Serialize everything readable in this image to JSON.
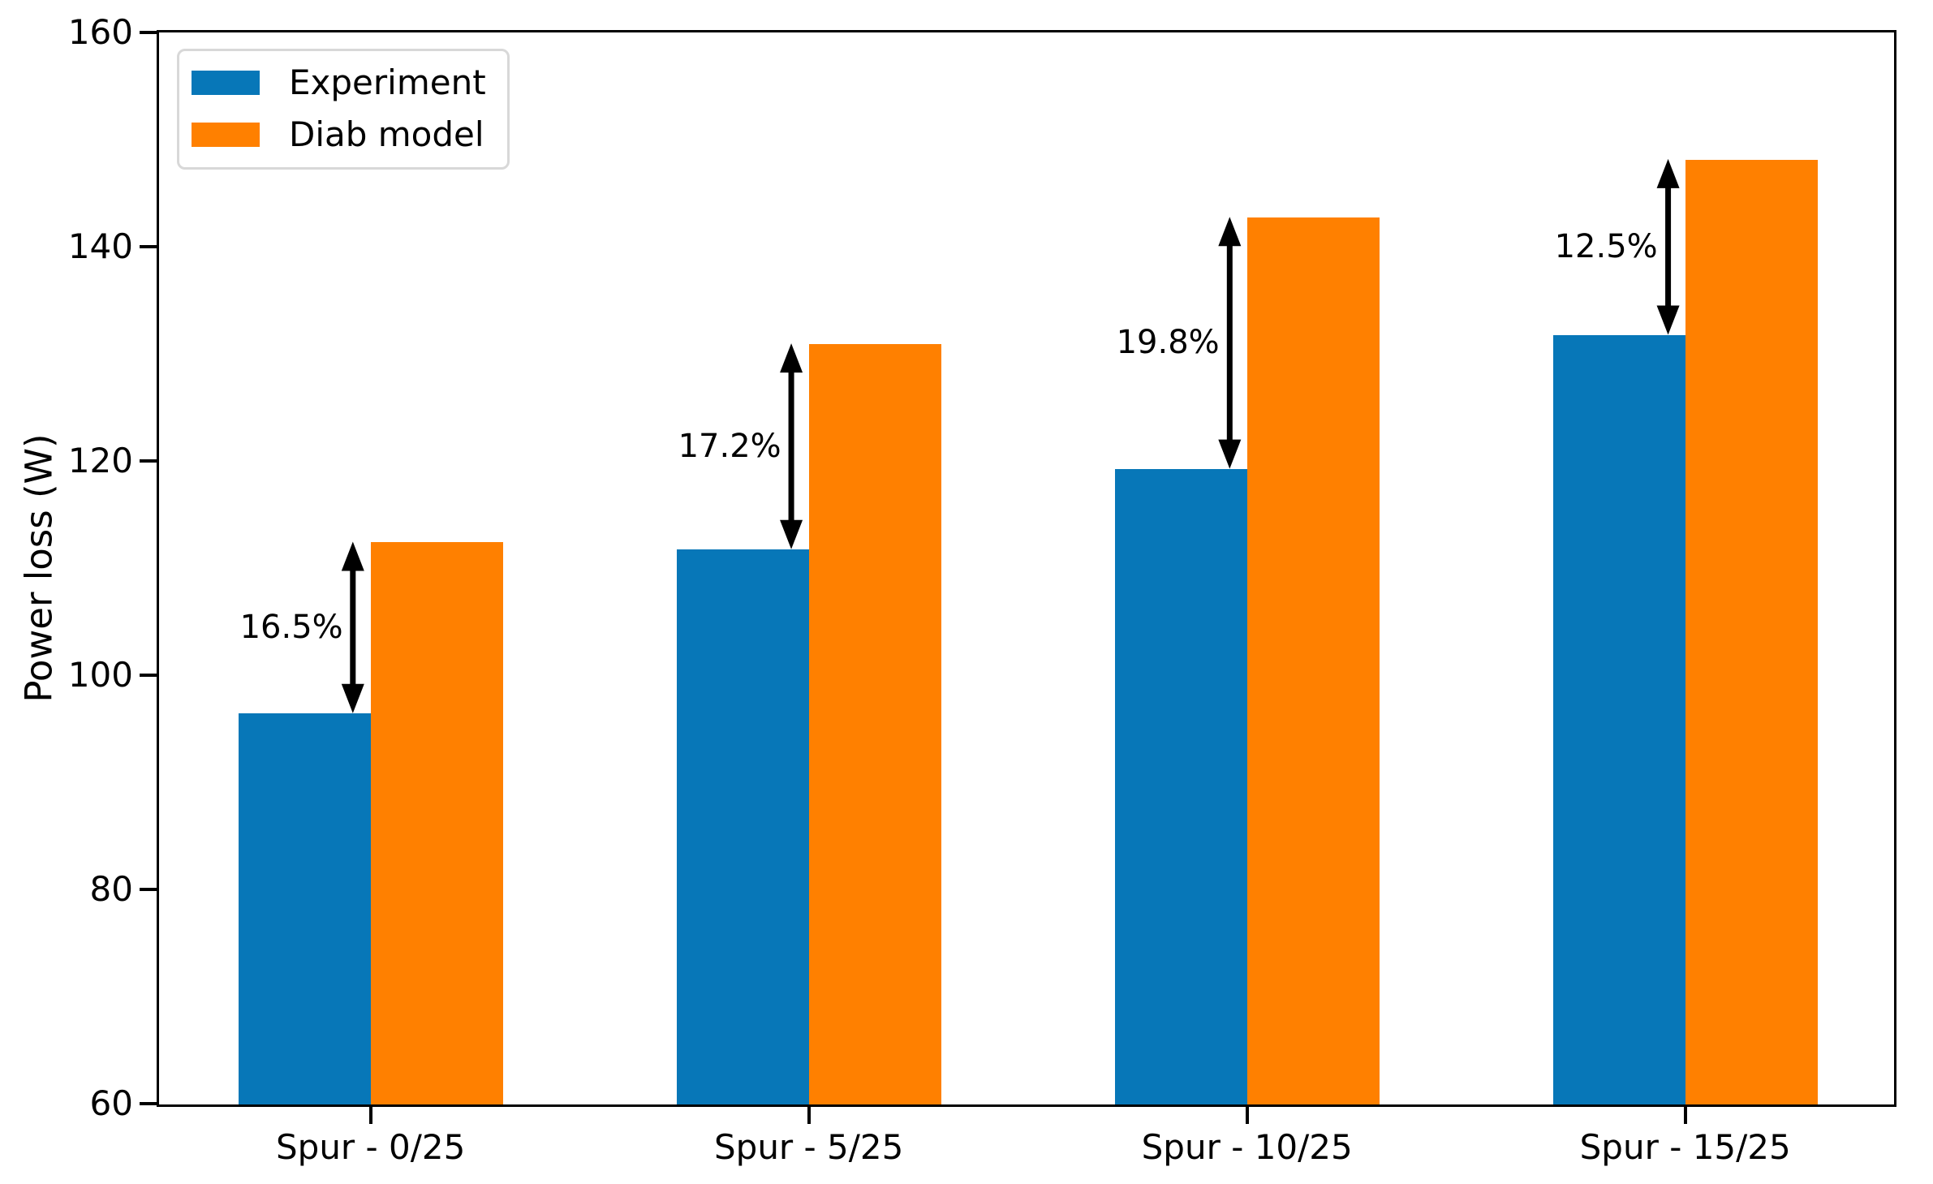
{
  "figure": {
    "ylabel": "Power loss (W)"
  },
  "chart_data": {
    "type": "bar",
    "title": "",
    "xlabel": "",
    "ylabel": "Power loss (W)",
    "categories": [
      "Spur - 0/25",
      "Spur - 5/25",
      "Spur - 10/25",
      "Spur - 15/25"
    ],
    "series": [
      {
        "name": "Experiment",
        "color": "#0777b8",
        "values": [
          96.5,
          111.8,
          119.3,
          131.8
        ]
      },
      {
        "name": "Diab model",
        "color": "#ff8000",
        "values": [
          112.5,
          131.0,
          142.8,
          148.2
        ]
      }
    ],
    "annotations": [
      {
        "group": 0,
        "label": "16.5%"
      },
      {
        "group": 1,
        "label": "17.2%"
      },
      {
        "group": 2,
        "label": "19.8%"
      },
      {
        "group": 3,
        "label": "12.5%"
      }
    ],
    "ylim": [
      60,
      160
    ],
    "yticks": [
      60,
      80,
      100,
      120,
      140,
      160
    ],
    "legend_position": "upper left",
    "grid": false,
    "annotation_arrow_color": "#000000",
    "axis_color": "#000000"
  }
}
